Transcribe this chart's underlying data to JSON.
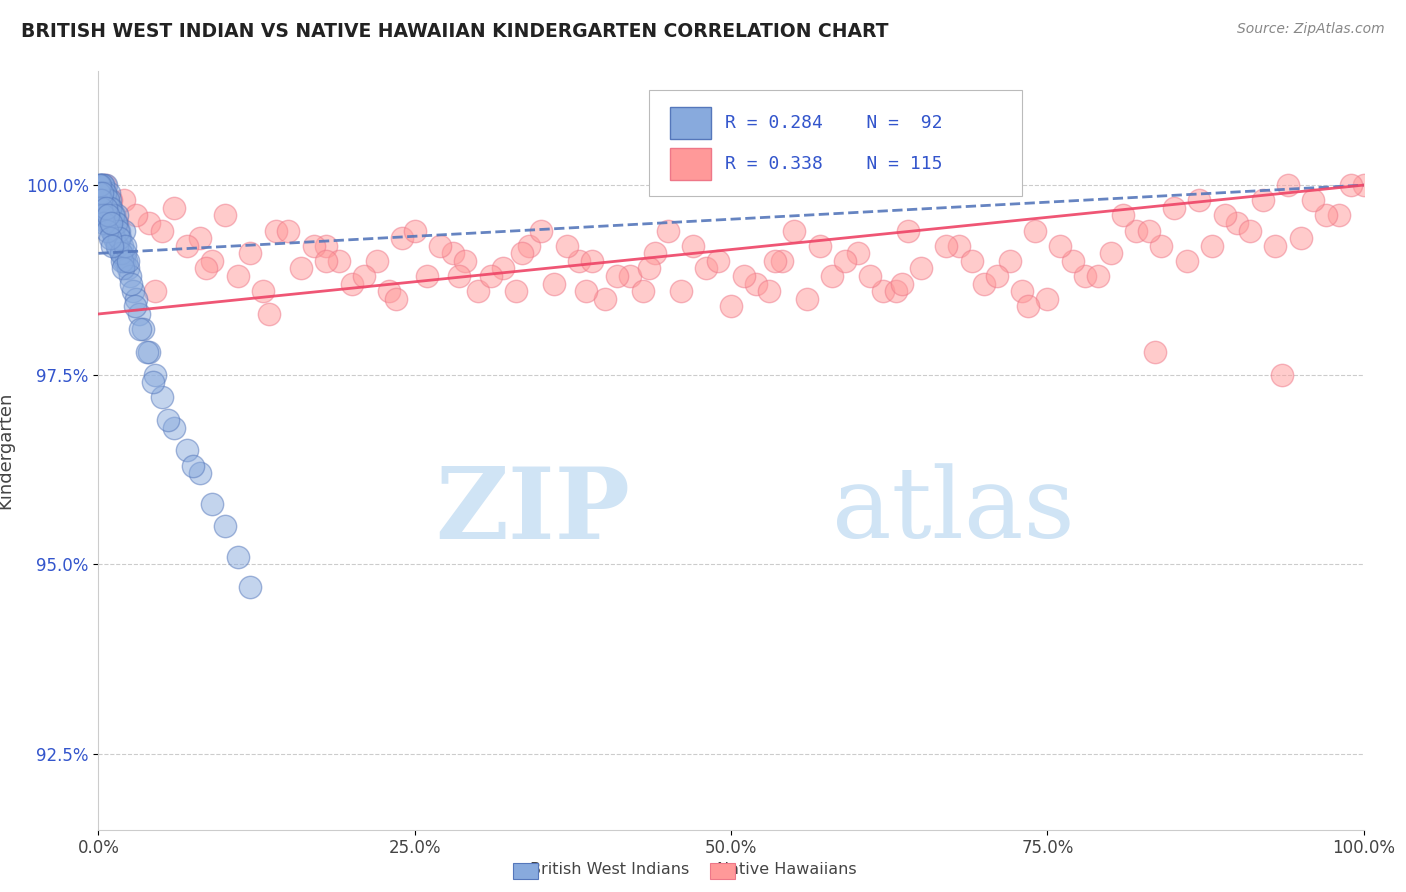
{
  "title": "BRITISH WEST INDIAN VS NATIVE HAWAIIAN KINDERGARTEN CORRELATION CHART",
  "source_text": "Source: ZipAtlas.com",
  "ylabel": "Kindergarten",
  "xlim": [
    0,
    100
  ],
  "ylim": [
    91.5,
    101.5
  ],
  "yticks": [
    92.5,
    95.0,
    97.5,
    100.0
  ],
  "xticks": [
    0,
    25,
    50,
    75,
    100
  ],
  "xtick_labels": [
    "0.0%",
    "25.0%",
    "50.0%",
    "75.0%",
    "100.0%"
  ],
  "ytick_labels": [
    "92.5%",
    "95.0%",
    "97.5%",
    "100.0%"
  ],
  "blue_color": "#88AADD",
  "pink_color": "#FF9999",
  "blue_edge": "#5577BB",
  "pink_edge": "#EE7788",
  "trend_blue_color": "#5577BB",
  "trend_pink_color": "#EE4466",
  "legend_color": "#3355CC",
  "watermark_color": "#D0E4F5",
  "blue_trend_start_y": 99.1,
  "blue_trend_end_y": 100.0,
  "pink_trend_start_y": 98.3,
  "pink_trend_end_y": 100.0,
  "blue_points_x": [
    0.1,
    0.1,
    0.2,
    0.2,
    0.3,
    0.3,
    0.4,
    0.4,
    0.5,
    0.5,
    0.6,
    0.6,
    0.7,
    0.7,
    0.8,
    0.8,
    0.9,
    0.9,
    1.0,
    1.0,
    1.1,
    1.2,
    1.3,
    1.4,
    1.5,
    1.5,
    1.6,
    1.7,
    1.8,
    1.9,
    2.0,
    2.0,
    2.1,
    2.2,
    2.3,
    2.5,
    2.7,
    3.0,
    3.2,
    3.5,
    4.0,
    4.5,
    5.0,
    6.0,
    7.0,
    8.0,
    9.0,
    10.0,
    11.0,
    12.0,
    0.15,
    0.25,
    0.35,
    0.45,
    0.55,
    0.65,
    0.75,
    0.85,
    0.95,
    1.05,
    1.15,
    1.25,
    1.35,
    1.45,
    1.55,
    1.65,
    1.75,
    1.85,
    1.95,
    2.1,
    2.3,
    2.6,
    2.9,
    3.3,
    3.8,
    4.3,
    5.5,
    7.5,
    0.05,
    0.08,
    0.12,
    0.18,
    0.22,
    0.28,
    0.38,
    0.48,
    0.58,
    0.68,
    0.78,
    0.88,
    0.98,
    1.08
  ],
  "blue_points_y": [
    100.0,
    99.8,
    100.0,
    99.7,
    99.9,
    100.0,
    99.8,
    100.0,
    99.6,
    99.9,
    99.7,
    100.0,
    99.8,
    99.5,
    99.7,
    99.9,
    99.6,
    99.8,
    99.5,
    99.7,
    99.4,
    99.6,
    99.3,
    99.5,
    99.2,
    99.6,
    99.4,
    99.3,
    99.1,
    99.2,
    99.0,
    99.4,
    99.1,
    99.0,
    98.9,
    98.8,
    98.6,
    98.5,
    98.3,
    98.1,
    97.8,
    97.5,
    97.2,
    96.8,
    96.5,
    96.2,
    95.8,
    95.5,
    95.1,
    94.7,
    99.9,
    99.8,
    100.0,
    99.7,
    99.9,
    99.6,
    99.8,
    99.5,
    99.7,
    99.4,
    99.6,
    99.3,
    99.5,
    99.2,
    99.4,
    99.3,
    99.1,
    99.0,
    98.9,
    99.2,
    99.0,
    98.7,
    98.4,
    98.1,
    97.8,
    97.4,
    96.9,
    96.3,
    100.0,
    99.9,
    100.0,
    99.8,
    99.7,
    99.9,
    99.6,
    99.5,
    99.7,
    99.4,
    99.6,
    99.3,
    99.5,
    99.2
  ],
  "pink_points_x": [
    0.5,
    2.0,
    4.0,
    6.0,
    8.0,
    10.0,
    12.0,
    14.0,
    16.0,
    18.0,
    20.0,
    22.0,
    24.0,
    26.0,
    28.0,
    30.0,
    32.0,
    34.0,
    36.0,
    38.0,
    40.0,
    42.0,
    44.0,
    46.0,
    48.0,
    50.0,
    52.0,
    54.0,
    56.0,
    58.0,
    60.0,
    62.0,
    65.0,
    68.0,
    70.0,
    72.0,
    75.0,
    78.0,
    80.0,
    82.0,
    85.0,
    88.0,
    90.0,
    92.0,
    95.0,
    98.0,
    100.0,
    3.0,
    7.0,
    11.0,
    15.0,
    19.0,
    23.0,
    27.0,
    31.0,
    35.0,
    39.0,
    43.0,
    47.0,
    51.0,
    55.0,
    59.0,
    63.0,
    67.0,
    71.0,
    74.0,
    77.0,
    81.0,
    84.0,
    87.0,
    91.0,
    94.0,
    97.0,
    1.0,
    5.0,
    9.0,
    13.0,
    17.0,
    21.0,
    25.0,
    29.0,
    33.0,
    37.0,
    41.0,
    45.0,
    49.0,
    53.0,
    57.0,
    61.0,
    64.0,
    69.0,
    73.0,
    76.0,
    79.0,
    83.0,
    86.0,
    89.0,
    93.0,
    96.0,
    99.0,
    1.5,
    4.5,
    8.5,
    13.5,
    18.0,
    23.5,
    28.5,
    33.5,
    38.5,
    43.5,
    53.5,
    63.5,
    73.5,
    83.5,
    93.5
  ],
  "pink_points_y": [
    100.0,
    99.8,
    99.5,
    99.7,
    99.3,
    99.6,
    99.1,
    99.4,
    98.9,
    99.2,
    98.7,
    99.0,
    99.3,
    98.8,
    99.1,
    98.6,
    98.9,
    99.2,
    98.7,
    99.0,
    98.5,
    98.8,
    99.1,
    98.6,
    98.9,
    98.4,
    98.7,
    99.0,
    98.5,
    98.8,
    99.1,
    98.6,
    98.9,
    99.2,
    98.7,
    99.0,
    98.5,
    98.8,
    99.1,
    99.4,
    99.7,
    99.2,
    99.5,
    99.8,
    99.3,
    99.6,
    100.0,
    99.6,
    99.2,
    98.8,
    99.4,
    99.0,
    98.6,
    99.2,
    98.8,
    99.4,
    99.0,
    98.6,
    99.2,
    98.8,
    99.4,
    99.0,
    98.6,
    99.2,
    98.8,
    99.4,
    99.0,
    99.6,
    99.2,
    99.8,
    99.4,
    100.0,
    99.6,
    99.8,
    99.4,
    99.0,
    98.6,
    99.2,
    98.8,
    99.4,
    99.0,
    98.6,
    99.2,
    98.8,
    99.4,
    99.0,
    98.6,
    99.2,
    98.8,
    99.4,
    99.0,
    98.6,
    99.2,
    98.8,
    99.4,
    99.0,
    99.6,
    99.2,
    99.8,
    100.0,
    99.5,
    98.6,
    98.9,
    98.3,
    99.0,
    98.5,
    98.8,
    99.1,
    98.6,
    98.9,
    99.0,
    98.7,
    98.4,
    97.8,
    97.5
  ]
}
